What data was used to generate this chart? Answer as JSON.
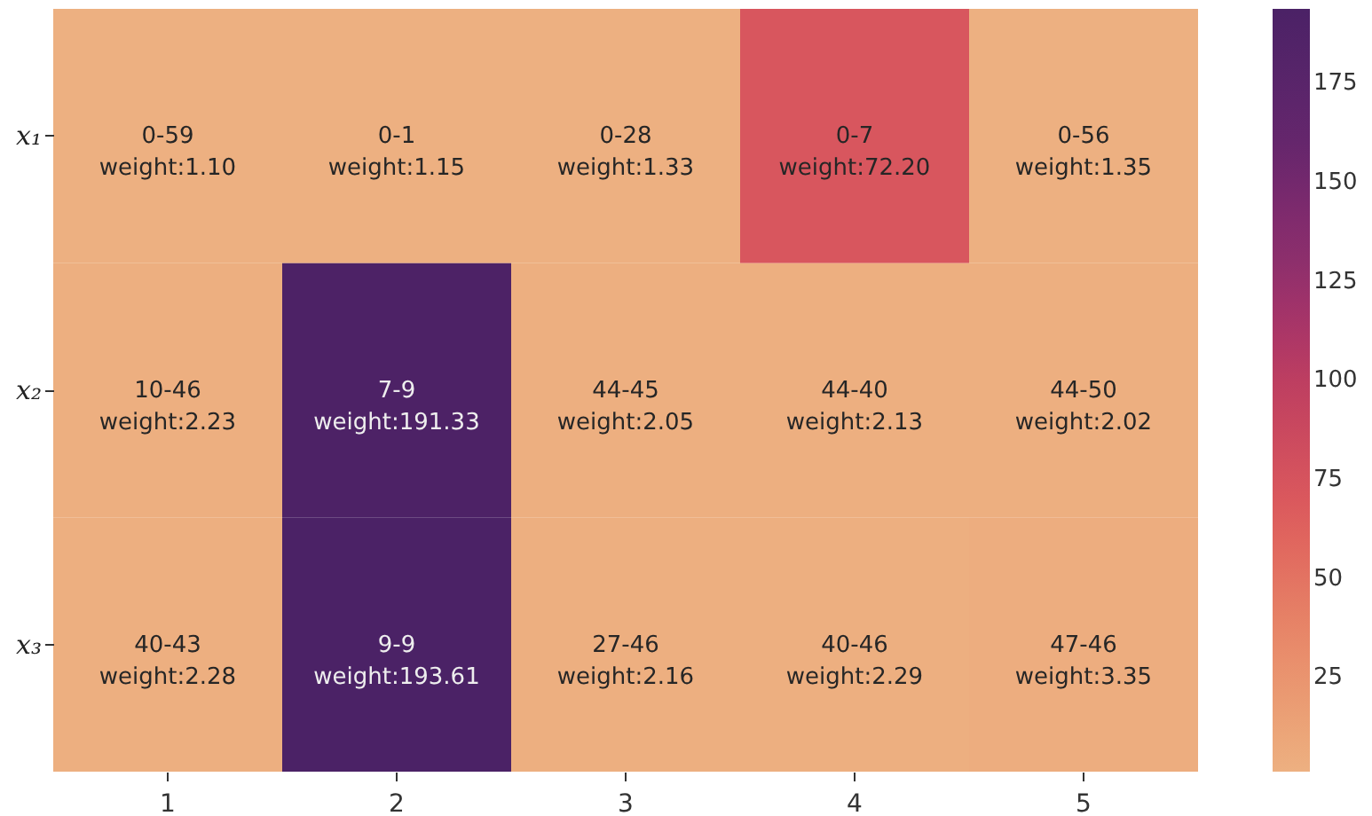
{
  "chart_data": {
    "type": "heatmap",
    "categories": [
      "1",
      "2",
      "3",
      "4",
      "5"
    ],
    "y_categories": [
      "x₁",
      "x₂",
      "x₃"
    ],
    "cells": [
      [
        1.1,
        1.15,
        1.33,
        72.2,
        1.35
      ],
      [
        2.23,
        191.33,
        2.05,
        2.13,
        2.02
      ],
      [
        2.28,
        193.61,
        2.16,
        2.29,
        3.35
      ]
    ],
    "cell_labels": [
      [
        "0-59\nweight:1.10",
        "0-1\nweight:1.15",
        "0-28\nweight:1.33",
        "0-7\nweight:72.20",
        "0-56\nweight:1.35"
      ],
      [
        "10-46\nweight:2.23",
        "7-9\nweight:191.33",
        "44-45\nweight:2.05",
        "44-40\nweight:2.13",
        "44-50\nweight:2.02"
      ],
      [
        "40-43\nweight:2.28",
        "9-9\nweight:193.61",
        "27-46\nweight:2.16",
        "40-46\nweight:2.29",
        "47-46\nweight:3.35"
      ]
    ],
    "clim": [
      1.1,
      193.61
    ],
    "cticks": [
      25,
      50,
      75,
      100,
      125,
      150,
      175
    ]
  }
}
